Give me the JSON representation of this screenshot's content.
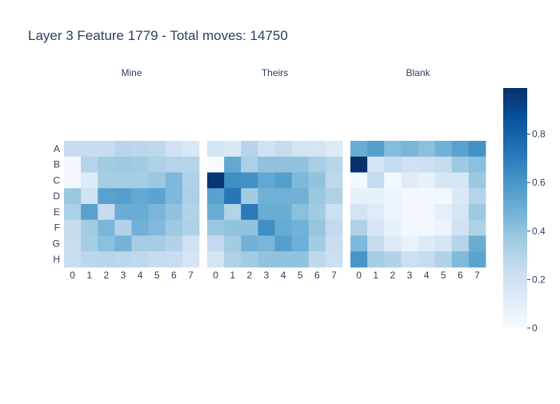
{
  "chart_data": {
    "type": "heatmap",
    "title": "Layer 3 Feature 1779 - Total moves: 14750",
    "row_labels": [
      "A",
      "B",
      "C",
      "D",
      "E",
      "F",
      "G",
      "H"
    ],
    "col_labels": [
      "0",
      "1",
      "2",
      "3",
      "4",
      "5",
      "6",
      "7"
    ],
    "colorscale": [
      "#f7fbff",
      "#deebf7",
      "#c6dbef",
      "#9ecae1",
      "#6baed6",
      "#4292c6",
      "#2171b5",
      "#08519c",
      "#08306b"
    ],
    "zlim": [
      0,
      0.99
    ],
    "colorbar": {
      "ticks": [
        0,
        0.2,
        0.4,
        0.6,
        0.8
      ],
      "tick_labels": [
        "0",
        "0.2",
        "0.4",
        "0.6",
        "0.8"
      ]
    },
    "panels": [
      {
        "name": "Mine",
        "values": [
          [
            0.24,
            0.24,
            0.24,
            0.29,
            0.28,
            0.27,
            0.2,
            0.15
          ],
          [
            0.02,
            0.3,
            0.36,
            0.37,
            0.36,
            0.32,
            0.3,
            0.3
          ],
          [
            0.03,
            0.13,
            0.35,
            0.35,
            0.35,
            0.38,
            0.45,
            0.32
          ],
          [
            0.38,
            0.19,
            0.55,
            0.56,
            0.52,
            0.54,
            0.45,
            0.33
          ],
          [
            0.33,
            0.55,
            0.24,
            0.5,
            0.5,
            0.46,
            0.4,
            0.31
          ],
          [
            0.24,
            0.36,
            0.46,
            0.31,
            0.48,
            0.44,
            0.37,
            0.32
          ],
          [
            0.23,
            0.35,
            0.42,
            0.47,
            0.35,
            0.35,
            0.31,
            0.2
          ],
          [
            0.23,
            0.28,
            0.29,
            0.28,
            0.27,
            0.24,
            0.23,
            0.17
          ]
        ]
      },
      {
        "name": "Theirs",
        "values": [
          [
            0.18,
            0.14,
            0.3,
            0.2,
            0.24,
            0.18,
            0.17,
            0.13
          ],
          [
            0.0,
            0.52,
            0.33,
            0.4,
            0.4,
            0.4,
            0.34,
            0.29
          ],
          [
            0.97,
            0.63,
            0.62,
            0.52,
            0.56,
            0.45,
            0.4,
            0.27
          ],
          [
            0.55,
            0.72,
            0.36,
            0.48,
            0.48,
            0.48,
            0.38,
            0.32
          ],
          [
            0.5,
            0.31,
            0.71,
            0.5,
            0.5,
            0.42,
            0.36,
            0.22
          ],
          [
            0.38,
            0.4,
            0.4,
            0.63,
            0.51,
            0.48,
            0.39,
            0.26
          ],
          [
            0.26,
            0.36,
            0.48,
            0.46,
            0.56,
            0.49,
            0.36,
            0.23
          ],
          [
            0.18,
            0.32,
            0.36,
            0.4,
            0.4,
            0.4,
            0.27,
            0.22
          ]
        ]
      },
      {
        "name": "Blank",
        "values": [
          [
            0.5,
            0.56,
            0.43,
            0.46,
            0.42,
            0.48,
            0.55,
            0.62
          ],
          [
            0.99,
            0.18,
            0.25,
            0.2,
            0.21,
            0.24,
            0.37,
            0.42
          ],
          [
            0.02,
            0.25,
            0.02,
            0.12,
            0.08,
            0.16,
            0.16,
            0.38
          ],
          [
            0.08,
            0.08,
            0.06,
            0.02,
            0.02,
            0.02,
            0.14,
            0.3
          ],
          [
            0.18,
            0.12,
            0.06,
            0.03,
            0.03,
            0.09,
            0.17,
            0.37
          ],
          [
            0.32,
            0.16,
            0.08,
            0.03,
            0.03,
            0.06,
            0.19,
            0.32
          ],
          [
            0.45,
            0.25,
            0.13,
            0.07,
            0.13,
            0.17,
            0.3,
            0.5
          ],
          [
            0.6,
            0.35,
            0.31,
            0.22,
            0.24,
            0.31,
            0.44,
            0.54
          ]
        ]
      }
    ]
  }
}
